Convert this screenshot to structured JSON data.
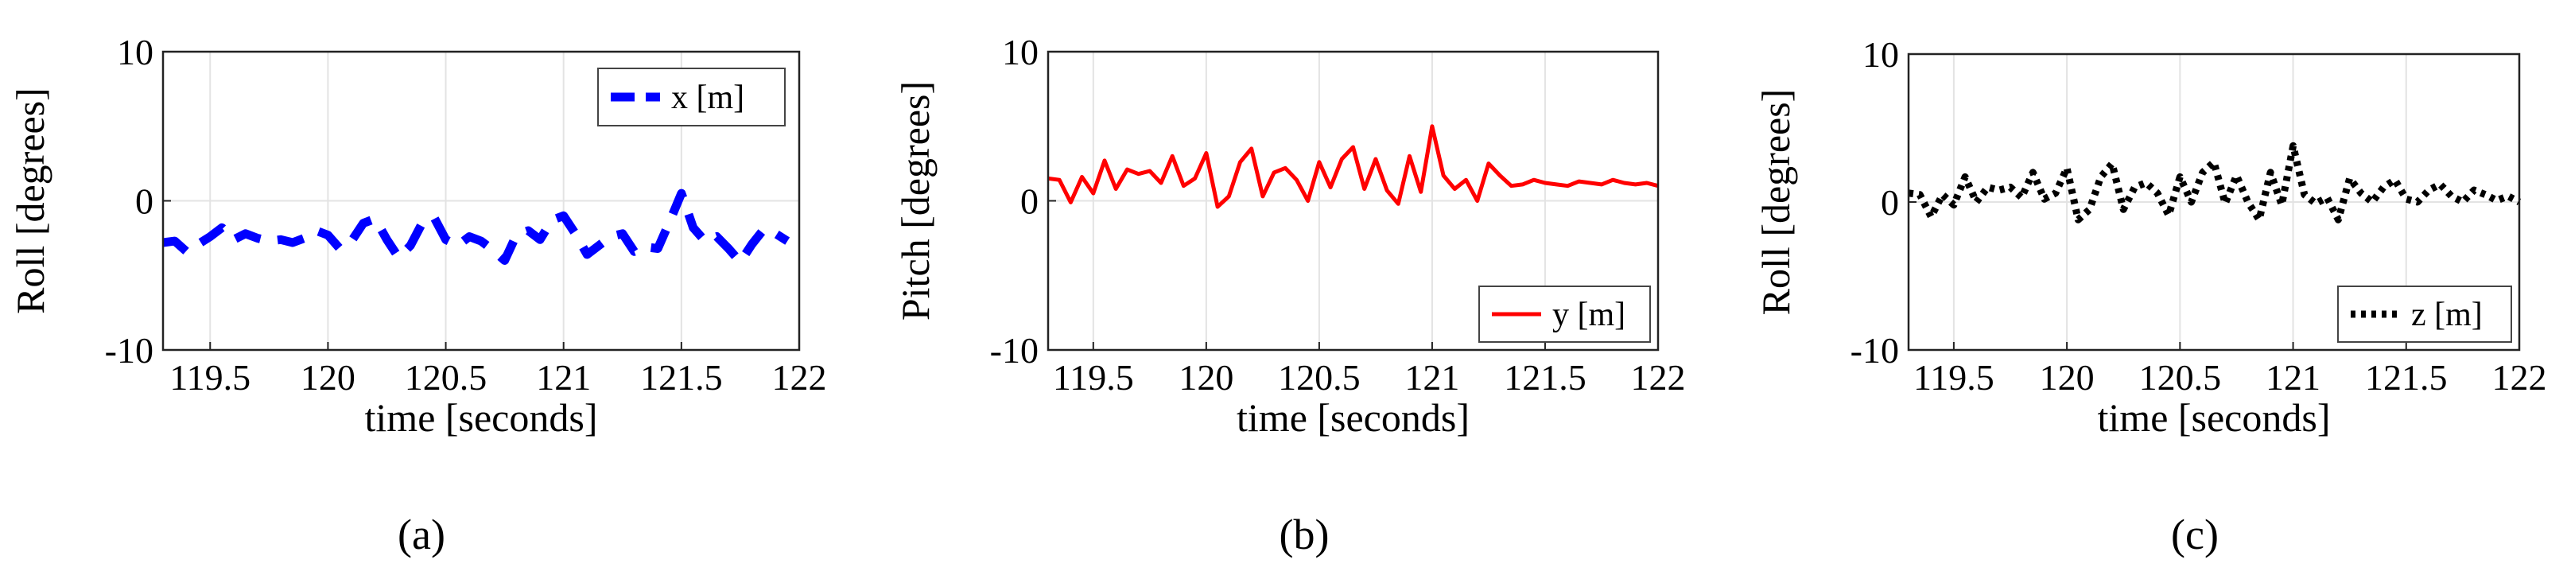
{
  "chart_data": [
    {
      "type": "line",
      "xlabel": "time [seconds]",
      "ylabel": "Roll [degrees]",
      "xlim": [
        119.3,
        122
      ],
      "ylim": [
        -10,
        10
      ],
      "xticks": [
        119.5,
        120,
        120.5,
        121,
        121.5,
        122
      ],
      "yticks": [
        -10,
        0,
        10
      ],
      "xtick_labels": [
        "119.5",
        "120",
        "120.5",
        "121",
        "121.5",
        "122"
      ],
      "ytick_labels": [
        "-10",
        "0",
        "10"
      ],
      "grid": true,
      "legend_position": "top-right",
      "caption": "(a)",
      "series": [
        {
          "name": "x [m]",
          "color": "#0000ff",
          "line_style": "dashed",
          "x": [
            119.3,
            119.35,
            119.4,
            119.45,
            119.5,
            119.55,
            119.6,
            119.65,
            119.7,
            119.75,
            119.8,
            119.85,
            119.9,
            119.95,
            120.0,
            120.05,
            120.1,
            120.15,
            120.2,
            120.25,
            120.3,
            120.35,
            120.4,
            120.45,
            120.5,
            120.55,
            120.6,
            120.65,
            120.7,
            120.75,
            120.8,
            120.85,
            120.9,
            120.95,
            121.0,
            121.05,
            121.1,
            121.15,
            121.2,
            121.25,
            121.3,
            121.35,
            121.4,
            121.45,
            121.5,
            121.55,
            121.6,
            121.65,
            121.7,
            121.75,
            121.8,
            121.85,
            121.9,
            121.95
          ],
          "values": [
            -2.8,
            -2.7,
            -3.4,
            -2.9,
            -2.4,
            -1.8,
            -2.6,
            -2.2,
            -2.5,
            -2.7,
            -2.6,
            -2.8,
            -2.5,
            -2.0,
            -2.3,
            -3.2,
            -2.7,
            -1.5,
            -1.2,
            -2.6,
            -3.8,
            -3.0,
            -1.5,
            -1.1,
            -2.6,
            -3.0,
            -2.4,
            -2.7,
            -3.3,
            -4.0,
            -2.3,
            -2.0,
            -2.6,
            -1.3,
            -1.0,
            -2.2,
            -3.6,
            -3.0,
            -2.4,
            -2.2,
            -3.4,
            -3.1,
            -3.2,
            -1.4,
            0.5,
            -1.8,
            -2.7,
            -2.4,
            -3.2,
            -4.1,
            -2.9,
            -1.9,
            -2.2,
            -2.7
          ]
        }
      ]
    },
    {
      "type": "line",
      "xlabel": "time [seconds]",
      "ylabel": "Pitch [degrees]",
      "xlim": [
        119.3,
        122
      ],
      "ylim": [
        -10,
        10
      ],
      "xticks": [
        119.5,
        120,
        120.5,
        121,
        121.5,
        122
      ],
      "yticks": [
        -10,
        0,
        10
      ],
      "xtick_labels": [
        "119.5",
        "120",
        "120.5",
        "121",
        "121.5",
        "122"
      ],
      "ytick_labels": [
        "-10",
        "0",
        "10"
      ],
      "grid": true,
      "legend_position": "bottom-right",
      "caption": "(b)",
      "series": [
        {
          "name": "y [m]",
          "color": "#ff0000",
          "line_style": "solid",
          "x": [
            119.3,
            119.35,
            119.4,
            119.45,
            119.5,
            119.55,
            119.6,
            119.65,
            119.7,
            119.75,
            119.8,
            119.85,
            119.9,
            119.95,
            120.0,
            120.05,
            120.1,
            120.15,
            120.2,
            120.25,
            120.3,
            120.35,
            120.4,
            120.45,
            120.5,
            120.55,
            120.6,
            120.65,
            120.7,
            120.75,
            120.8,
            120.85,
            120.9,
            120.95,
            121.0,
            121.05,
            121.1,
            121.15,
            121.2,
            121.25,
            121.3,
            121.35,
            121.4,
            121.45,
            121.5,
            121.55,
            121.6,
            121.65,
            121.7,
            121.75,
            121.8,
            121.85,
            121.9,
            121.95,
            122.0
          ],
          "values": [
            1.5,
            1.4,
            -0.1,
            1.6,
            0.5,
            2.7,
            0.8,
            2.1,
            1.8,
            2.0,
            1.2,
            3.0,
            1.0,
            1.5,
            3.2,
            -0.4,
            0.3,
            2.6,
            3.5,
            0.3,
            1.9,
            2.2,
            1.4,
            0.0,
            2.6,
            0.9,
            2.8,
            3.6,
            0.8,
            2.8,
            0.7,
            -0.2,
            3.0,
            0.6,
            5.0,
            1.7,
            0.8,
            1.4,
            0.0,
            2.5,
            1.7,
            1.0,
            1.1,
            1.4,
            1.2,
            1.1,
            1.0,
            1.3,
            1.2,
            1.1,
            1.4,
            1.2,
            1.1,
            1.2,
            1.0
          ]
        }
      ]
    },
    {
      "type": "line",
      "xlabel": "time [seconds]",
      "ylabel": "Roll [degrees]",
      "xlim": [
        119.3,
        122
      ],
      "ylim": [
        -10,
        10
      ],
      "xticks": [
        119.5,
        120,
        120.5,
        121,
        121.5,
        122
      ],
      "yticks": [
        -10,
        0,
        10
      ],
      "xtick_labels": [
        "119.5",
        "120",
        "120.5",
        "121",
        "121.5",
        "122"
      ],
      "ytick_labels": [
        "-10",
        "0",
        "10"
      ],
      "grid": true,
      "legend_position": "bottom-right",
      "caption": "(c)",
      "series": [
        {
          "name": "z [m]",
          "color": "#000000",
          "line_style": "dotted",
          "x": [
            119.3,
            119.35,
            119.4,
            119.45,
            119.5,
            119.55,
            119.6,
            119.65,
            119.7,
            119.75,
            119.8,
            119.85,
            119.9,
            119.95,
            120.0,
            120.05,
            120.1,
            120.15,
            120.2,
            120.25,
            120.3,
            120.35,
            120.4,
            120.45,
            120.5,
            120.55,
            120.6,
            120.65,
            120.7,
            120.75,
            120.8,
            120.85,
            120.9,
            120.95,
            121.0,
            121.05,
            121.1,
            121.15,
            121.2,
            121.25,
            121.3,
            121.35,
            121.4,
            121.45,
            121.5,
            121.55,
            121.6,
            121.65,
            121.7,
            121.75,
            121.8,
            121.85,
            121.9,
            121.95,
            122.0
          ],
          "values": [
            0.6,
            0.5,
            -1.0,
            0.5,
            -0.2,
            1.7,
            0.0,
            1.0,
            0.8,
            1.0,
            0.3,
            2.0,
            0.2,
            0.6,
            2.3,
            -1.2,
            -0.5,
            1.7,
            2.6,
            -0.5,
            1.0,
            1.3,
            0.6,
            -0.9,
            1.7,
            0.0,
            2.0,
            2.7,
            -0.1,
            1.8,
            0.0,
            -1.2,
            2.0,
            -0.2,
            3.8,
            0.5,
            -0.1,
            0.3,
            -1.2,
            1.6,
            0.6,
            0.0,
            1.0,
            1.5,
            0.2,
            0.0,
            0.8,
            1.2,
            0.4,
            0.0,
            0.8,
            0.5,
            0.1,
            0.4,
            0.0
          ]
        }
      ]
    }
  ]
}
